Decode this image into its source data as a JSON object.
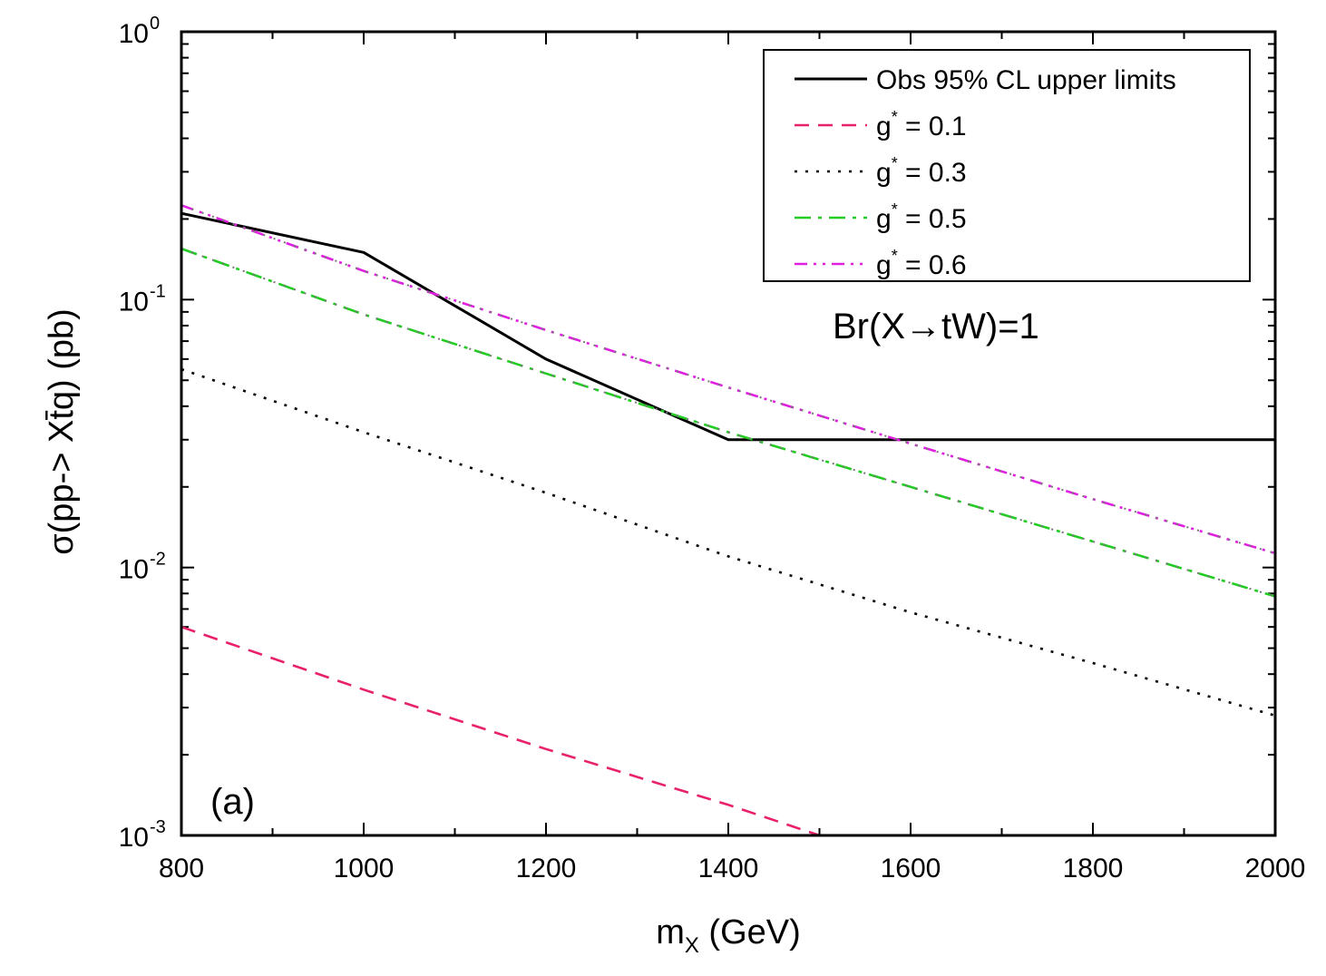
{
  "chart_data": {
    "type": "line",
    "xlabel_main": "m",
    "xlabel_sub": "X",
    "xlabel_unit": " (GeV)",
    "ylabel": "σ(pp-> Xt̄q) (pb)",
    "xlim": [
      800,
      2000
    ],
    "ylim": [
      0.001,
      1
    ],
    "yscale": "log",
    "x_ticks": [
      "800",
      "1000",
      "1200",
      "1400",
      "1600",
      "1800",
      "2000"
    ],
    "y_ticks": [
      {
        "base": "10",
        "exp": "0"
      },
      {
        "base": "10",
        "exp": "-1"
      },
      {
        "base": "10",
        "exp": "-2"
      },
      {
        "base": "10",
        "exp": "-3"
      }
    ],
    "annotation": "Br(X→tW)=1",
    "panel_label": "(a)",
    "legend_position": "top-right",
    "series": [
      {
        "name": "Obs 95% CL upper limits",
        "color": "#000000",
        "style": "solid",
        "x": [
          800,
          1000,
          1200,
          1400,
          1600,
          1800,
          2000
        ],
        "y": [
          0.21,
          0.15,
          0.06,
          0.03,
          0.03,
          0.03,
          0.03
        ]
      },
      {
        "name": "g* = 0.1",
        "color": "#e8216b",
        "style": "dash",
        "x": [
          800,
          1000,
          1200,
          1400,
          1500
        ],
        "y": [
          0.006,
          0.0035,
          0.0021,
          0.0013,
          0.00098
        ]
      },
      {
        "name": "g* = 0.3",
        "color": "#000000",
        "style": "dot",
        "x": [
          800,
          1000,
          1200,
          1400,
          1600,
          1800,
          2000
        ],
        "y": [
          0.055,
          0.032,
          0.019,
          0.011,
          0.0068,
          0.0044,
          0.0028
        ]
      },
      {
        "name": "g* = 0.5",
        "color": "#22cc22",
        "style": "dashdot",
        "x": [
          800,
          1000,
          1200,
          1400,
          1600,
          1800,
          2000
        ],
        "y": [
          0.155,
          0.088,
          0.053,
          0.032,
          0.02,
          0.0125,
          0.0078
        ]
      },
      {
        "name": "g* = 0.6",
        "color": "#e020e0",
        "style": "dashdotdot",
        "x": [
          800,
          1000,
          1200,
          1400,
          1600,
          1800,
          2000
        ],
        "y": [
          0.225,
          0.128,
          0.077,
          0.047,
          0.029,
          0.018,
          0.0113
        ]
      }
    ],
    "legend": [
      {
        "prefix": "Obs 95% CL upper limits",
        "sup": "",
        "suffix": ""
      },
      {
        "prefix": "g",
        "sup": "*",
        "suffix": " = 0.1"
      },
      {
        "prefix": "g",
        "sup": "*",
        "suffix": " = 0.3"
      },
      {
        "prefix": "g",
        "sup": "*",
        "suffix": " = 0.5"
      },
      {
        "prefix": "g",
        "sup": "*",
        "suffix": " = 0.6"
      }
    ]
  }
}
